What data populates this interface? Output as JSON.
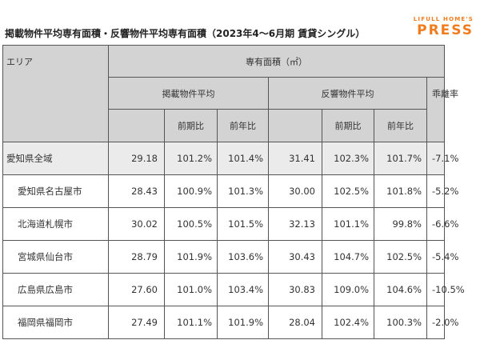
{
  "header": {
    "title": "掲載物件平均専有面積・反響物件平均専有面積（2023年4～6月期 賃貸シングル）",
    "brand_top": "LIFULL HOME'S",
    "brand_main": "PRESS"
  },
  "table": {
    "area_label": "エリア",
    "group_label": "専有面積（㎡）",
    "listing_label": "掲載物件平均",
    "response_label": "反響物件平均",
    "gap_label": "乖離率",
    "prev_period_label": "前期比",
    "prev_year_label": "前年比",
    "rows": [
      {
        "area": "愛知県全域",
        "listing_avg": "29.18",
        "listing_qoq": "101.2%",
        "listing_yoy": "101.4%",
        "response_avg": "31.41",
        "response_qoq": "102.3%",
        "response_yoy": "101.7%",
        "gap": "-7.1%"
      },
      {
        "area": "愛知県名古屋市",
        "listing_avg": "28.43",
        "listing_qoq": "100.9%",
        "listing_yoy": "101.3%",
        "response_avg": "30.00",
        "response_qoq": "102.5%",
        "response_yoy": "101.8%",
        "gap": "-5.2%"
      },
      {
        "area": "北海道札幌市",
        "listing_avg": "30.02",
        "listing_qoq": "100.5%",
        "listing_yoy": "101.5%",
        "response_avg": "32.13",
        "response_qoq": "101.1%",
        "response_yoy": "99.8%",
        "gap": "-6.6%"
      },
      {
        "area": "宮城県仙台市",
        "listing_avg": "28.79",
        "listing_qoq": "101.9%",
        "listing_yoy": "103.6%",
        "response_avg": "30.43",
        "response_qoq": "104.7%",
        "response_yoy": "102.5%",
        "gap": "-5.4%"
      },
      {
        "area": "広島県広島市",
        "listing_avg": "27.60",
        "listing_qoq": "101.0%",
        "listing_yoy": "103.4%",
        "response_avg": "30.83",
        "response_qoq": "109.0%",
        "response_yoy": "104.6%",
        "gap": "-10.5%"
      },
      {
        "area": "福岡県福岡市",
        "listing_avg": "27.49",
        "listing_qoq": "101.1%",
        "listing_yoy": "101.9%",
        "response_avg": "28.04",
        "response_qoq": "102.4%",
        "response_yoy": "100.3%",
        "gap": "-2.0%"
      }
    ]
  }
}
